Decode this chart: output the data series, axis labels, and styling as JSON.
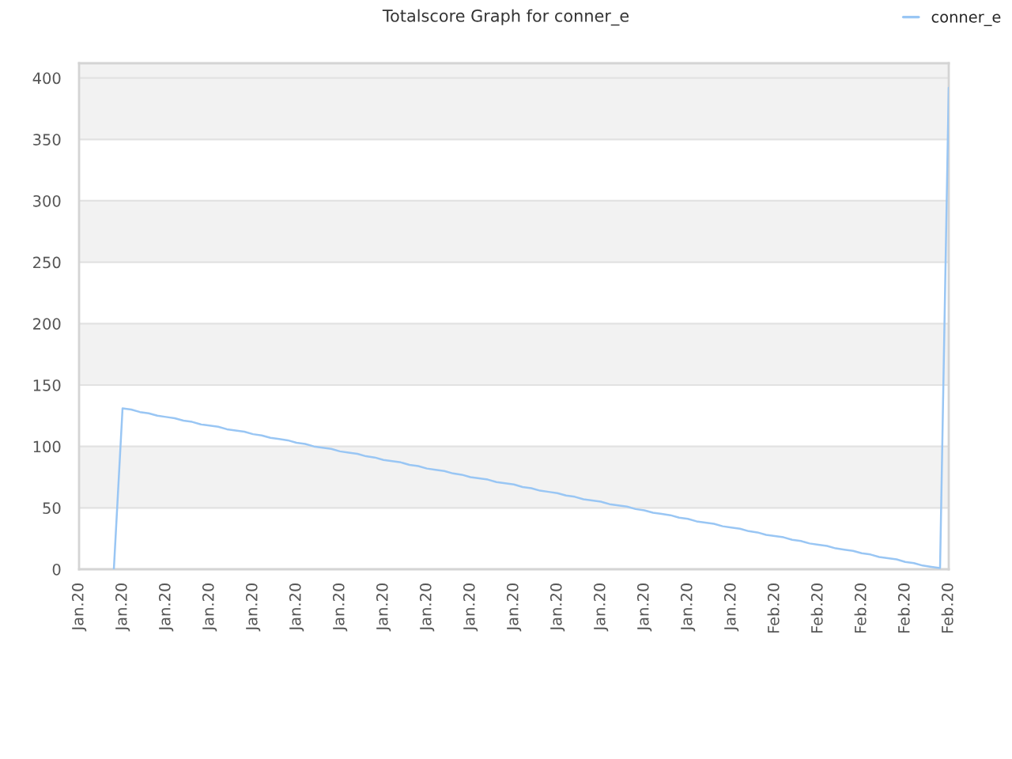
{
  "chart_data": {
    "type": "line",
    "title": "Totalscore Graph for conner_e",
    "categories": [
      "Jan.20",
      null,
      null,
      null,
      null,
      "Jan.20",
      null,
      null,
      null,
      null,
      "Jan.20",
      null,
      null,
      null,
      null,
      "Jan.20",
      null,
      null,
      null,
      null,
      "Jan.20",
      null,
      null,
      null,
      null,
      "Jan.20",
      null,
      null,
      null,
      null,
      "Jan.20",
      null,
      null,
      null,
      null,
      "Jan.20",
      null,
      null,
      null,
      null,
      "Jan.20",
      null,
      null,
      null,
      null,
      "Jan.20",
      null,
      null,
      null,
      null,
      "Jan.20",
      null,
      null,
      null,
      null,
      "Jan.20",
      null,
      null,
      null,
      null,
      "Jan.20",
      null,
      null,
      null,
      null,
      "Jan.20",
      null,
      null,
      null,
      null,
      "Jan.20",
      null,
      null,
      null,
      null,
      "Jan.20",
      null,
      null,
      null,
      null,
      "Feb.20",
      null,
      null,
      null,
      null,
      "Feb.20",
      null,
      null,
      null,
      null,
      "Feb.20",
      null,
      null,
      null,
      null,
      "Feb.20",
      null,
      null,
      null,
      null,
      "Feb.20"
    ],
    "series": [
      {
        "name": "conner_e",
        "color": "#99c6f4",
        "values": [
          null,
          null,
          null,
          null,
          0,
          131,
          130,
          128,
          127,
          125,
          124,
          123,
          121,
          120,
          118,
          117,
          116,
          114,
          113,
          112,
          110,
          109,
          107,
          106,
          105,
          103,
          102,
          100,
          99,
          98,
          96,
          95,
          94,
          92,
          91,
          89,
          88,
          87,
          85,
          84,
          82,
          81,
          80,
          78,
          77,
          75,
          74,
          73,
          71,
          70,
          69,
          67,
          66,
          64,
          63,
          62,
          60,
          59,
          57,
          56,
          55,
          53,
          52,
          51,
          49,
          48,
          46,
          45,
          44,
          42,
          41,
          39,
          38,
          37,
          35,
          34,
          33,
          31,
          30,
          28,
          27,
          26,
          24,
          23,
          21,
          20,
          19,
          17,
          16,
          15,
          13,
          12,
          10,
          9,
          8,
          6,
          5,
          3,
          2,
          1,
          392
        ]
      }
    ],
    "ylim": [
      0,
      412
    ],
    "yticks": [
      0,
      50,
      100,
      150,
      200,
      250,
      300,
      350,
      400
    ],
    "grid": "y",
    "legend": "top right",
    "line_style": "solid"
  }
}
